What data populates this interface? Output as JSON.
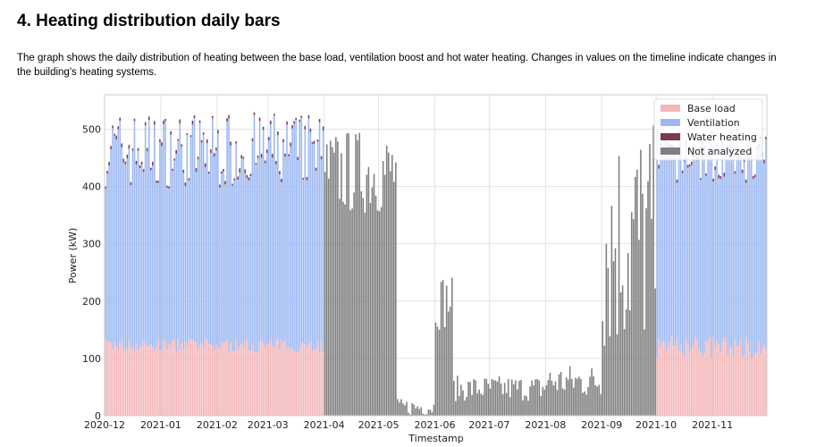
{
  "heading": "4. Heating distribution daily bars",
  "description": "The graph shows the daily distribution of heating between the base load, ventilation boost and hot water heating. Changes in values on the timeline indicate changes in the building's heating systems.",
  "chart_data": {
    "type": "bar",
    "stacked": true,
    "xlabel": "Timestamp",
    "ylabel": "Power (kW)",
    "ylim": [
      0,
      560
    ],
    "yticks": [
      0,
      100,
      200,
      300,
      400,
      500
    ],
    "xlim": [
      "2020-12-01",
      "2021-11-30"
    ],
    "xticks": [
      "2020-12",
      "2021-01",
      "2021-02",
      "2021-03",
      "2021-04",
      "2021-05",
      "2021-06",
      "2021-07",
      "2021-08",
      "2021-09",
      "2021-10",
      "2021-11"
    ],
    "grid": true,
    "legend_position": "top-right",
    "series": [
      {
        "name": "Base load",
        "color": "#f4b6b8"
      },
      {
        "name": "Ventilation",
        "color": "#9db9f3"
      },
      {
        "name": "Water heating",
        "color": "#7a3b4f"
      },
      {
        "name": "Not analyzed",
        "color": "#7f7f7f"
      }
    ],
    "segments": [
      {
        "from": "2020-12-01",
        "to": "2021-03-31",
        "kind": "analyzed",
        "base": [
          110,
          135
        ],
        "total": [
          400,
          530
        ]
      },
      {
        "from": "2021-04-01",
        "to": "2021-05-10",
        "kind": "not_analyzed",
        "total": [
          350,
          500
        ]
      },
      {
        "from": "2021-05-11",
        "to": "2021-05-31",
        "kind": "not_analyzed",
        "total": [
          0,
          30
        ]
      },
      {
        "from": "2021-06-01",
        "to": "2021-06-10",
        "kind": "not_analyzed",
        "total": [
          150,
          250
        ]
      },
      {
        "from": "2021-06-11",
        "to": "2021-07-31",
        "kind": "not_analyzed",
        "total": [
          25,
          70
        ]
      },
      {
        "from": "2021-08-01",
        "to": "2021-08-31",
        "kind": "not_analyzed",
        "total": [
          30,
          90
        ]
      },
      {
        "from": "2021-09-01",
        "to": "2021-09-30",
        "kind": "not_analyzed",
        "total": [
          100,
          520
        ]
      },
      {
        "from": "2021-10-01",
        "to": "2021-11-30",
        "kind": "analyzed",
        "base": [
          100,
          140
        ],
        "total": [
          410,
          500
        ]
      }
    ]
  }
}
